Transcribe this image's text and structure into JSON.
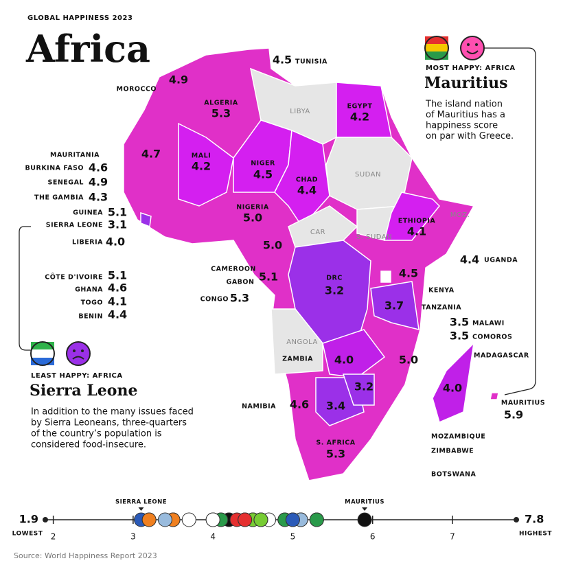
{
  "header": {
    "kicker": "GLOBAL HAPPINESS 2023",
    "title": "Africa"
  },
  "map": {
    "countries": [
      {
        "name": "MOROCCO",
        "score": 4.9
      },
      {
        "name": "ALGERIA",
        "score": 5.3
      },
      {
        "name": "TUNISIA",
        "score": 4.5
      },
      {
        "name": "EGYPT",
        "score": 4.2
      },
      {
        "name": "MAURITANIA",
        "score": 4.7
      },
      {
        "name": "MALI",
        "score": 4.2
      },
      {
        "name": "NIGER",
        "score": 4.5
      },
      {
        "name": "CHAD",
        "score": 4.4
      },
      {
        "name": "BURKINA FASO",
        "score": 4.6
      },
      {
        "name": "SENEGAL",
        "score": 4.9
      },
      {
        "name": "THE GAMBIA",
        "score": 4.3
      },
      {
        "name": "GUINEA",
        "score": 5.1
      },
      {
        "name": "SIERRA LEONE",
        "score": 3.1
      },
      {
        "name": "LIBERIA",
        "score": 4.0,
        "score_label": "4.0"
      },
      {
        "name": "NIGERIA",
        "score": 5.0,
        "score_label": "5.0"
      },
      {
        "name": "ETHIOPIA",
        "score": 4.1
      },
      {
        "name": "UGANDA",
        "score": 4.4
      },
      {
        "name": "KENYA",
        "score": 4.5
      },
      {
        "name": "CAMEROON",
        "score": 5.0,
        "score_label": "5.0"
      },
      {
        "name": "GABON",
        "score": 5.1
      },
      {
        "name": "CONGO",
        "score": 5.3
      },
      {
        "name": "DRC",
        "score": 3.2
      },
      {
        "name": "TANZANIA",
        "score": 3.7
      },
      {
        "name": "MALAWI",
        "score": 3.5
      },
      {
        "name": "COMOROS",
        "score": 3.5
      },
      {
        "name": "CÔTE D'IVOIRE",
        "score": 5.1
      },
      {
        "name": "GHANA",
        "score": 4.6
      },
      {
        "name": "TOGO",
        "score": 4.1
      },
      {
        "name": "BENIN",
        "score": 4.4
      },
      {
        "name": "ZAMBIA",
        "score": 4.0,
        "score_label": "4.0"
      },
      {
        "name": "MOZAMBIQUE",
        "score": 5.0,
        "score_label": "5.0"
      },
      {
        "name": "MADAGASCAR",
        "score": 4.0,
        "score_label": "4.0"
      },
      {
        "name": "MAURITIUS",
        "score": 5.9
      },
      {
        "name": "ZIMBABWE",
        "score": 3.2
      },
      {
        "name": "BOTSWANA",
        "score": 3.4
      },
      {
        "name": "NAMIBIA",
        "score": 4.6
      },
      {
        "name": "S. AFRICA",
        "score": 5.3
      }
    ],
    "unscored_labels": [
      "LIBYA",
      "SUDAN",
      "CAR",
      "S. SUDAN",
      "ANGOLA",
      "MOZ."
    ]
  },
  "most_happy": {
    "heading": "MOST HAPPY: AFRICA",
    "country": "Mauritius",
    "text": [
      "The island nation",
      "of Mauritius has a",
      "happiness score",
      "on par with Greece."
    ]
  },
  "least_happy": {
    "heading": "LEAST HAPPY: AFRICA",
    "country": "Sierra Leone",
    "text": [
      "In addition to the many issues faced",
      "by Sierra Leoneans, three-quarters",
      "of the country’s population is",
      "considered food-insecure."
    ]
  },
  "scale": {
    "lim": [
      1.9,
      7.8
    ],
    "min_label": "1.9",
    "max_label": "7.8",
    "min_text": "LOWEST",
    "max_text": "HIGHEST",
    "ticks": [
      2,
      3,
      4,
      5,
      6,
      7
    ],
    "highlights": [
      "SIERRA LEONE",
      "MAURITIUS"
    ]
  },
  "source": "Source: World Happiness Report 2023"
}
